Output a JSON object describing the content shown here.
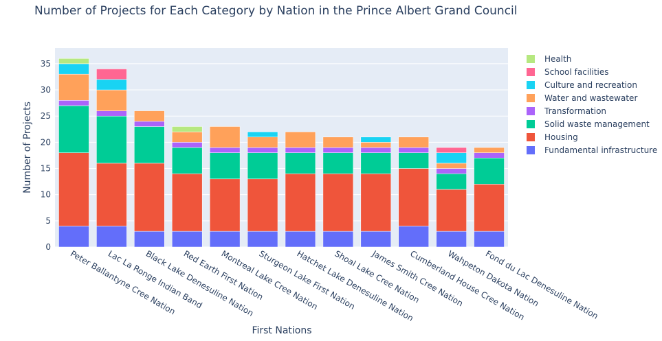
{
  "chart_data": {
    "type": "bar",
    "stacked": true,
    "title": "Number of Projects for Each Category by Nation in the Prince Albert Grand Council",
    "xlabel": "First Nations",
    "ylabel": "Number of Projects",
    "ylim": [
      0,
      38
    ],
    "yticks": [
      0,
      5,
      10,
      15,
      20,
      25,
      30,
      35
    ],
    "grid": true,
    "legend_position": "right",
    "categories": [
      "Peter Ballantyne Cree Nation",
      "Lac La Ronge Indian Band",
      "Black Lake Denesuline Nation",
      "Red Earth First Nation",
      "Montreal Lake Cree Nation",
      "Sturgeon Lake First Nation",
      "Hatchet Lake Denesuline Nation",
      "Shoal Lake Cree Nation",
      "James Smith Cree Nation",
      "Cumberland House Cree Nation",
      "Wahpeton Dakota Nation",
      "Fond du Lac Denesuline Nation"
    ],
    "series": [
      {
        "name": "Fundamental infrastructure",
        "color": "#636efa",
        "values": [
          4,
          4,
          3,
          3,
          3,
          3,
          3,
          3,
          3,
          4,
          3,
          3
        ]
      },
      {
        "name": "Housing",
        "color": "#ef553b",
        "values": [
          14,
          12,
          13,
          11,
          10,
          10,
          11,
          11,
          11,
          11,
          8,
          9
        ]
      },
      {
        "name": "Solid waste management",
        "color": "#00cc96",
        "values": [
          9,
          9,
          7,
          5,
          5,
          5,
          4,
          4,
          4,
          3,
          3,
          5
        ]
      },
      {
        "name": "Transformation",
        "color": "#ab63fa",
        "values": [
          1,
          1,
          1,
          1,
          1,
          1,
          1,
          1,
          1,
          1,
          1,
          1
        ]
      },
      {
        "name": "Water and wastewater",
        "color": "#ffa15a",
        "values": [
          5,
          4,
          2,
          2,
          4,
          2,
          3,
          2,
          1,
          2,
          1,
          1
        ]
      },
      {
        "name": "Culture and recreation",
        "color": "#19d3f3",
        "values": [
          2,
          2,
          0,
          0,
          0,
          1,
          0,
          0,
          1,
          0,
          2,
          0
        ]
      },
      {
        "name": "School facilities",
        "color": "#ff6692",
        "values": [
          0,
          2,
          0,
          0,
          0,
          0,
          0,
          0,
          0,
          0,
          1,
          0
        ]
      },
      {
        "name": "Health",
        "color": "#b6e880",
        "values": [
          1,
          0,
          0,
          1,
          0,
          0,
          0,
          0,
          0,
          0,
          0,
          0
        ]
      }
    ]
  }
}
